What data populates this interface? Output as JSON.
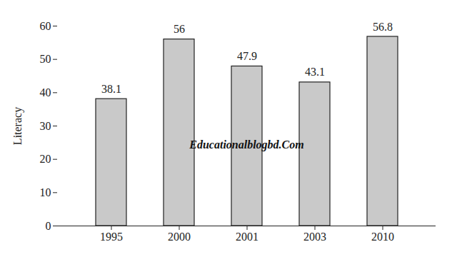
{
  "chart_data": {
    "type": "bar",
    "y_label": "Literacy",
    "categories": [
      "1995",
      "2000",
      "2001",
      "2003",
      "2010"
    ],
    "values": [
      38.1,
      56,
      47.9,
      43.1,
      56.8
    ],
    "color": "#c9c9c9",
    "ylim": [
      0,
      60
    ],
    "yticks": [
      0,
      10,
      20,
      30,
      40,
      50,
      60
    ],
    "grid": false,
    "data_labels": true,
    "annotation": "Educationalblogbd.Com"
  }
}
